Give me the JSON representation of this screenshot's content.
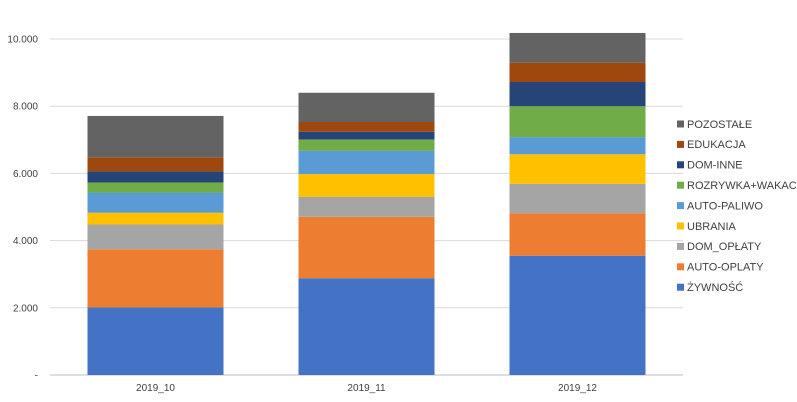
{
  "chart_data": {
    "type": "bar",
    "stacked": true,
    "title": "",
    "xlabel": "",
    "ylabel": "",
    "categories": [
      "2019_10",
      "2019_11",
      "2019_12"
    ],
    "ylim": [
      0,
      10000
    ],
    "yticks": [
      {
        "value": 0,
        "label": "-"
      },
      {
        "value": 2000,
        "label": "2.000"
      },
      {
        "value": 4000,
        "label": "4.000"
      },
      {
        "value": 6000,
        "label": "6.000"
      },
      {
        "value": 8000,
        "label": "8.000"
      },
      {
        "value": 10000,
        "label": "10.000"
      }
    ],
    "grid": true,
    "legend_position": "right",
    "series": [
      {
        "name": "ŻYWNOŚĆ",
        "color": "#4472C4",
        "values": [
          2010,
          2880,
          3550
        ]
      },
      {
        "name": "AUTO-OPLATY",
        "color": "#ED7D31",
        "values": [
          1730,
          1830,
          1260
        ]
      },
      {
        "name": "DOM_OPŁATY",
        "color": "#A5A5A5",
        "values": [
          740,
          590,
          880
        ]
      },
      {
        "name": "UBRANIA",
        "color": "#FFC000",
        "values": [
          350,
          680,
          880
        ]
      },
      {
        "name": "AUTO-PALIWO",
        "color": "#5B9BD5",
        "values": [
          600,
          690,
          510
        ]
      },
      {
        "name": "ROZRYWKA+WAKACJE",
        "color": "#70AD47",
        "values": [
          300,
          340,
          920
        ]
      },
      {
        "name": "DOM-INNE",
        "color": "#264478",
        "values": [
          330,
          230,
          720
        ]
      },
      {
        "name": "EDUKACJA",
        "color": "#9E480E",
        "values": [
          420,
          290,
          570
        ]
      },
      {
        "name": "POZOSTAŁE",
        "color": "#636363",
        "values": [
          1230,
          870,
          890
        ]
      }
    ]
  }
}
